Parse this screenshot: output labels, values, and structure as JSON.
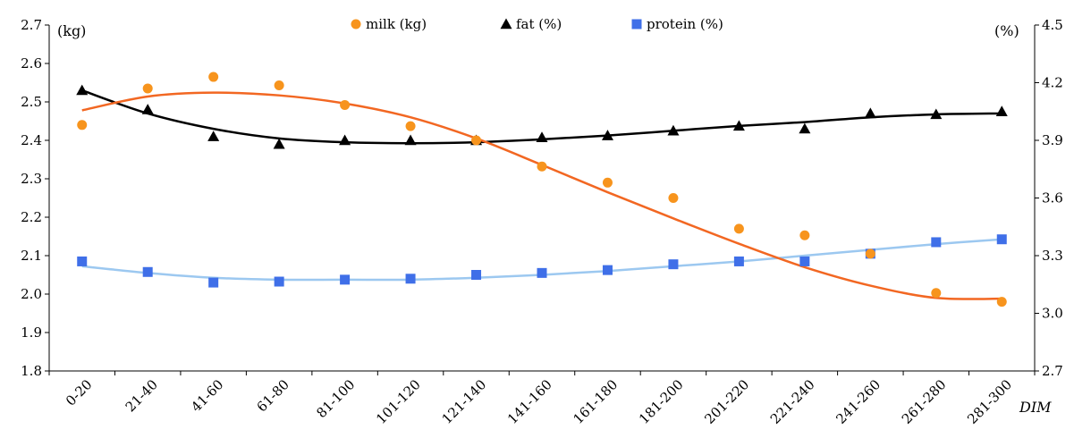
{
  "chart_data": {
    "type": "scatter",
    "title": "",
    "xlabel": "DIM",
    "ylabel_left": "(kg)",
    "ylabel_right": "(%)",
    "categories": [
      "0-20",
      "21-40",
      "41-60",
      "61-80",
      "81-100",
      "101-120",
      "121-140",
      "141-160",
      "161-180",
      "181-200",
      "201-220",
      "221-240",
      "241-260",
      "261-280",
      "281-300"
    ],
    "ylim_left": [
      1.8,
      2.7
    ],
    "yticks_left": [
      "1.8",
      "1.9",
      "2.0",
      "2.1",
      "2.2",
      "2.3",
      "2.4",
      "2.5",
      "2.6",
      "2.7"
    ],
    "ylim_right": [
      2.7,
      4.5
    ],
    "yticks_right": [
      "2.7",
      "3.0",
      "3.3",
      "3.6",
      "3.9",
      "4.2",
      "4.5"
    ],
    "grid": false,
    "legend_position": "top",
    "series": [
      {
        "name": "milk (kg)",
        "axis": "left",
        "marker": "circle",
        "marker_color": "#F7941D",
        "trend_color": "#F26722",
        "values": [
          2.44,
          2.535,
          2.565,
          2.543,
          2.492,
          2.437,
          2.4,
          2.332,
          2.29,
          2.25,
          2.17,
          2.153,
          2.105,
          2.003,
          1.98
        ],
        "trend": [
          2.478,
          2.514,
          2.524,
          2.517,
          2.496,
          2.46,
          2.405,
          2.336,
          2.265,
          2.197,
          2.131,
          2.07,
          2.022,
          1.99,
          1.988
        ]
      },
      {
        "name": "fat (%)",
        "axis": "right",
        "marker": "triangle",
        "marker_color": "#000000",
        "trend_color": "#000000",
        "values": [
          4.16,
          4.06,
          3.92,
          3.88,
          3.9,
          3.9,
          3.9,
          3.915,
          3.925,
          3.95,
          3.975,
          3.96,
          4.04,
          4.035,
          4.05
        ],
        "trend": [
          4.16,
          4.04,
          3.96,
          3.91,
          3.89,
          3.885,
          3.89,
          3.905,
          3.925,
          3.95,
          3.975,
          3.995,
          4.02,
          4.035,
          4.04
        ]
      },
      {
        "name": "protein (%)",
        "axis": "right",
        "marker": "square",
        "marker_color": "#3F6FE8",
        "trend_color": "#9CC8F0",
        "values": [
          3.27,
          3.215,
          3.16,
          3.165,
          3.175,
          3.18,
          3.2,
          3.21,
          3.225,
          3.255,
          3.27,
          3.27,
          3.31,
          3.37,
          3.385
        ],
        "trend": [
          3.245,
          3.21,
          3.185,
          3.175,
          3.175,
          3.175,
          3.185,
          3.2,
          3.22,
          3.245,
          3.27,
          3.3,
          3.33,
          3.36,
          3.385
        ]
      }
    ]
  }
}
